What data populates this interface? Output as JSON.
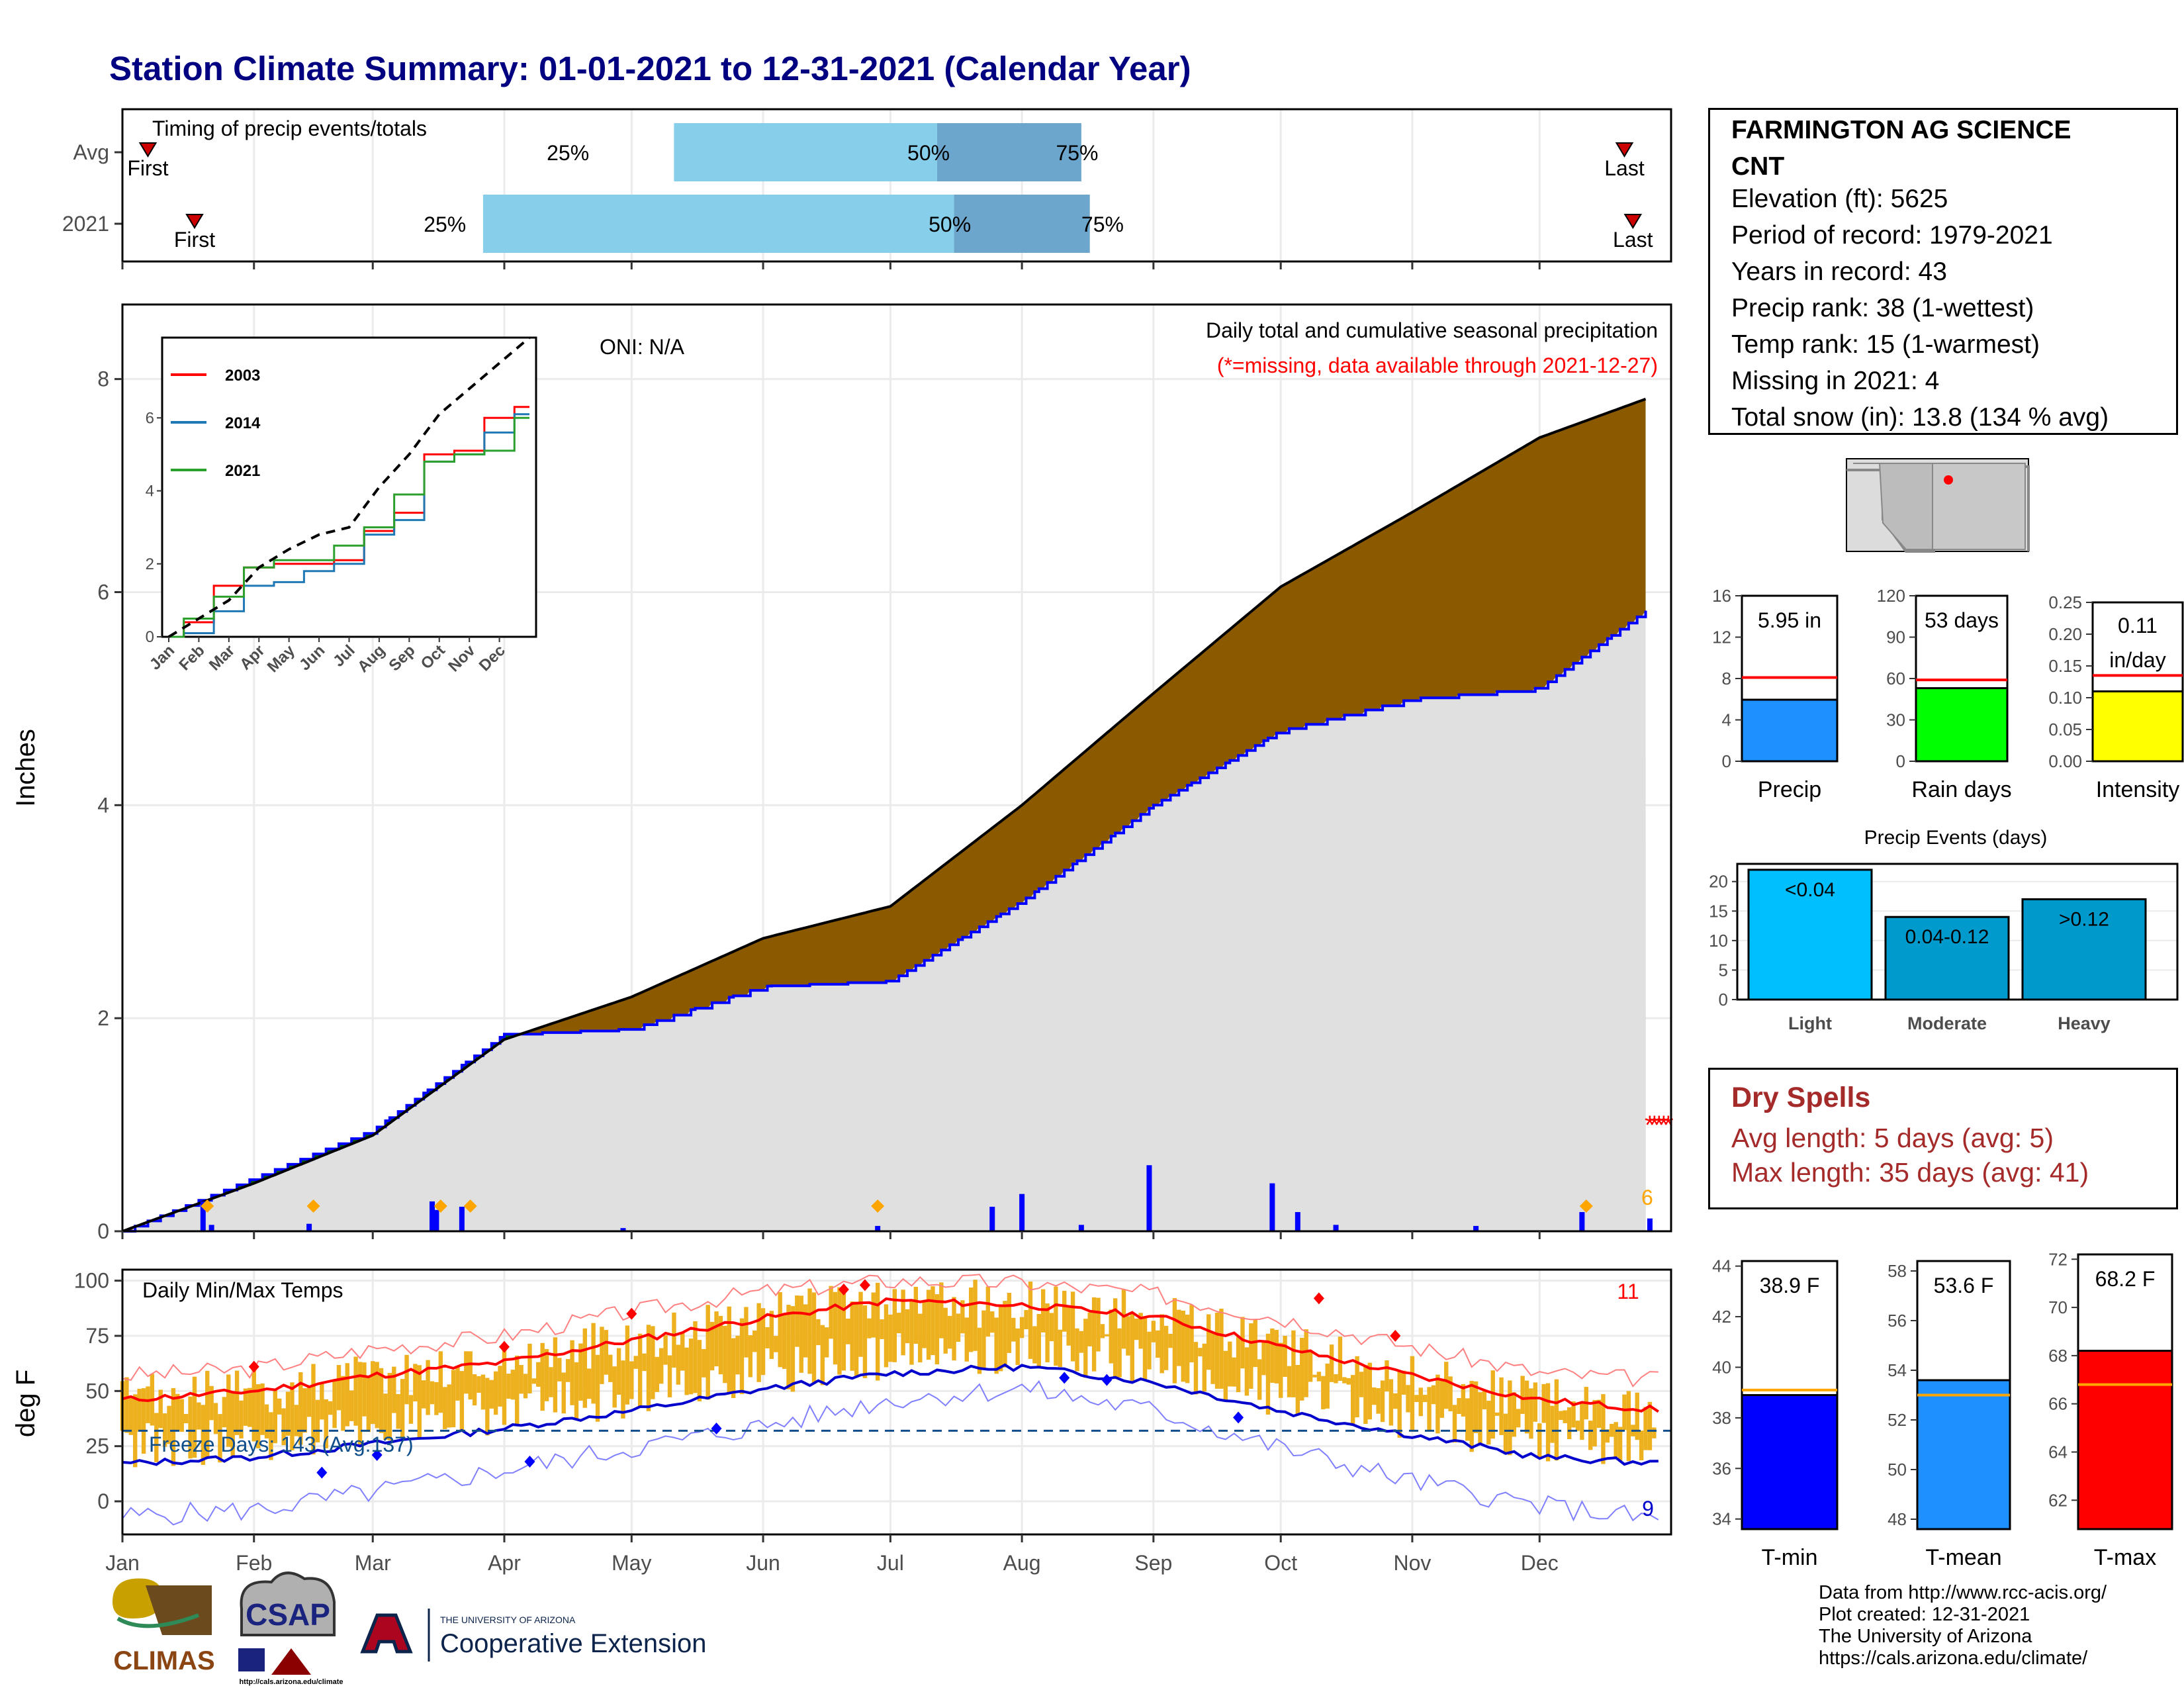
{
  "title": "Station Climate Summary: 01-01-2021 to 12-31-2021 (Calendar Year)",
  "colors": {
    "title": "#000080",
    "cumulative_avg": "#8B5A00",
    "below_avg": "#006400",
    "current": "#0000ff",
    "background_fill": "#e0e0e0",
    "timing_light": "#87ceeb",
    "timing_dark": "#6ca6cd",
    "temp_band": "#edb120",
    "tmax": "#ff0000",
    "tmin": "#0000cd",
    "freeze_line": "#104e8b"
  },
  "timing": {
    "label": "Timing of precip events/totals",
    "rows": [
      {
        "name": "Avg",
        "first": "First",
        "last": "Last",
        "p25": "25%",
        "p50": "50%",
        "p75": "75%"
      },
      {
        "name": "2021",
        "first": "First",
        "last": "Last",
        "p25": "25%",
        "p50": "50%",
        "p75": "75%"
      }
    ]
  },
  "precip_panel": {
    "ylabel": "Inches",
    "oni": "ONI: N/A",
    "subtitle": "Daily total and cumulative seasonal precipitation",
    "missing_note": "(*=missing, data available through 2021-12-27)",
    "count_label": "6",
    "yticks": [
      "0",
      "2",
      "4",
      "6",
      "8"
    ]
  },
  "inset": {
    "legend": [
      "2003",
      "2014",
      "2021"
    ],
    "yticks": [
      "0",
      "2",
      "4",
      "6"
    ],
    "months": [
      "Jan",
      "Feb",
      "Mar",
      "Apr",
      "May",
      "Jun",
      "Jul",
      "Aug",
      "Sep",
      "Oct",
      "Nov",
      "Dec"
    ]
  },
  "temp_panel": {
    "ylabel": "deg F",
    "title": "Daily Min/Max Temps",
    "freeze_label": "Freeze Days: 143 (Avg:137)",
    "count_max": "11",
    "count_min": "9",
    "yticks": [
      "0",
      "25",
      "50",
      "75",
      "100"
    ]
  },
  "months": [
    "Jan",
    "Feb",
    "Mar",
    "Apr",
    "May",
    "Jun",
    "Jul",
    "Aug",
    "Sep",
    "Oct",
    "Nov",
    "Dec"
  ],
  "station": {
    "name_line1": "FARMINGTON AG SCIENCE",
    "name_line2": "CNT",
    "elevation": "Elevation (ft): 5625",
    "period": "Period of record: 1979-2021",
    "years": "Years in record: 43",
    "precip_rank": "Precip rank: 38 (1-wettest)",
    "temp_rank": "Temp rank: 15 (1-warmest)",
    "missing": "Missing in 2021: 4",
    "snow": "Total snow (in): 13.8 (134 % avg)"
  },
  "dry_spells": {
    "title": "Dry Spells",
    "avg": "Avg length: 5 days (avg: 5)",
    "max": "Max length: 35 days (avg: 41)"
  },
  "footer": {
    "line1": "Data from http://www.rcc-acis.org/",
    "line2": "Plot created: 12-31-2021",
    "line3": "The University of Arizona",
    "line4": "https://cals.arizona.edu/climate/"
  },
  "logos": {
    "climas": "CLIMAS",
    "csap": "CSAP",
    "csap_url": "http://cals.arizona.edu/climate",
    "ua_small": "THE UNIVERSITY OF ARIZONA",
    "ua_big": "Cooperative Extension"
  },
  "chart_data": [
    {
      "type": "area",
      "title": "Daily total and cumulative seasonal precipitation",
      "ylabel": "Inches",
      "ylim": [
        0,
        8.7
      ],
      "x": [
        "2021-01-01",
        "2021-02-01",
        "2021-03-01",
        "2021-04-01",
        "2021-05-01",
        "2021-06-01",
        "2021-07-01",
        "2021-08-01",
        "2021-09-01",
        "2021-10-01",
        "2021-11-01",
        "2021-12-01",
        "2021-12-31"
      ],
      "series": [
        {
          "values": [
            0.0,
            0.45,
            0.9,
            1.8,
            2.2,
            2.75,
            3.05,
            4.0,
            5.05,
            6.05,
            6.75,
            7.45,
            7.9
          ]
        },
        {
          "values": [
            0.0,
            0.5,
            0.95,
            1.85,
            1.9,
            2.3,
            2.35,
            3.1,
            4.0,
            4.7,
            5.0,
            5.1,
            6.0
          ]
        }
      ],
      "daily_precip_bars": [
        {
          "date": "2021-01-20",
          "value": 0.28
        },
        {
          "date": "2021-01-22",
          "value": 0.06
        },
        {
          "date": "2021-02-14",
          "value": 0.07
        },
        {
          "date": "2021-03-15",
          "value": 0.28
        },
        {
          "date": "2021-03-16",
          "value": 0.2
        },
        {
          "date": "2021-03-22",
          "value": 0.23
        },
        {
          "date": "2021-04-29",
          "value": 0.03
        },
        {
          "date": "2021-06-28",
          "value": 0.05
        },
        {
          "date": "2021-07-25",
          "value": 0.23
        },
        {
          "date": "2021-08-01",
          "value": 0.35
        },
        {
          "date": "2021-08-15",
          "value": 0.06
        },
        {
          "date": "2021-08-31",
          "value": 0.62
        },
        {
          "date": "2021-09-29",
          "value": 0.45
        },
        {
          "date": "2021-10-05",
          "value": 0.18
        },
        {
          "date": "2021-10-14",
          "value": 0.06
        },
        {
          "date": "2021-11-16",
          "value": 0.05
        },
        {
          "date": "2021-12-11",
          "value": 0.18
        },
        {
          "date": "2021-12-27",
          "value": 0.12
        }
      ]
    },
    {
      "type": "line",
      "title": "",
      "legend": [
        "2003",
        "2014",
        "2021"
      ],
      "ylim": [
        0,
        8.2
      ],
      "x": [
        "Jan",
        "Feb",
        "Mar",
        "Apr",
        "May",
        "Jun",
        "Jul",
        "Aug",
        "Sep",
        "Oct",
        "Nov",
        "Dec",
        "Dec-end"
      ],
      "series": [
        {
          "name": "2003",
          "values": [
            0.0,
            0.4,
            1.4,
            1.9,
            2.0,
            2.0,
            2.1,
            2.9,
            3.4,
            5.0,
            5.1,
            6.0,
            6.3
          ]
        },
        {
          "name": "2014",
          "values": [
            0.0,
            0.1,
            0.7,
            1.4,
            1.5,
            1.8,
            2.0,
            2.8,
            3.2,
            4.8,
            5.0,
            5.6,
            6.1
          ]
        },
        {
          "name": "2021",
          "values": [
            0.0,
            0.5,
            1.1,
            1.9,
            2.1,
            2.1,
            2.5,
            3.0,
            3.9,
            4.8,
            5.0,
            5.1,
            6.0
          ]
        },
        {
          "values": [
            0.0,
            0.5,
            1.0,
            1.9,
            2.4,
            2.8,
            3.0,
            4.1,
            5.0,
            6.1,
            6.8,
            7.5,
            8.2
          ]
        }
      ]
    },
    {
      "type": "line",
      "title": "Daily Min/Max Temps",
      "ylabel": "deg F",
      "ylim": [
        -15,
        105
      ],
      "x": [
        "Jan",
        "Feb",
        "Mar",
        "Apr",
        "May",
        "Jun",
        "Jul",
        "Aug",
        "Sep",
        "Oct",
        "Nov",
        "Dec",
        "Dec-end"
      ],
      "series": [
        {
          "values": [
            46,
            50,
            57,
            63,
            73,
            83,
            91,
            89,
            84,
            70,
            57,
            46,
            41
          ]
        },
        {
          "values": [
            17,
            20,
            26,
            33,
            41,
            51,
            58,
            61,
            54,
            41,
            30,
            20,
            17
          ]
        },
        {
          "values": [
            57,
            60,
            69,
            75,
            86,
            95,
            100,
            99,
            94,
            83,
            70,
            58,
            55
          ]
        },
        {
          "values": [
            -7,
            -4,
            4,
            14,
            24,
            34,
            46,
            51,
            41,
            24,
            9,
            -2,
            -9
          ]
        }
      ],
      "freeze_threshold_F": 32
    },
    {
      "type": "bar",
      "categories": [
        "Precip"
      ],
      "values": [
        5.95
      ],
      "average": 8.1,
      "ylim": [
        0,
        16
      ],
      "yticks": [
        "0",
        "4",
        "8",
        "12",
        "16"
      ],
      "label": "5.95 in"
    },
    {
      "type": "bar",
      "categories": [
        "Rain days"
      ],
      "values": [
        53
      ],
      "average": 59,
      "ylim": [
        0,
        120
      ],
      "yticks": [
        "0",
        "30",
        "60",
        "90",
        "120"
      ],
      "label": "53 days"
    },
    {
      "type": "bar",
      "categories": [
        "Intensity"
      ],
      "values": [
        0.11
      ],
      "average": 0.135,
      "ylim": [
        0,
        0.25
      ],
      "yticks": [
        "0.00",
        "0.05",
        "0.10",
        "0.15",
        "0.20",
        "0.25"
      ],
      "label_line1": "0.11",
      "label_line2": "in/day"
    },
    {
      "type": "bar",
      "title": "Precip Events (days)",
      "categories": [
        "Light",
        "Moderate",
        "Heavy"
      ],
      "bar_labels": [
        "<0.04",
        "0.04-0.12",
        ">0.12"
      ],
      "values": [
        22,
        14,
        17
      ],
      "ylim": [
        0,
        23
      ],
      "yticks": [
        "0",
        "5",
        "10",
        "15",
        "20"
      ]
    },
    {
      "type": "bar",
      "categories": [
        "T-min"
      ],
      "values": [
        38.9
      ],
      "average": 39.1,
      "ylim": [
        33.6,
        44.2
      ],
      "yticks": [
        "34",
        "36",
        "38",
        "40",
        "42",
        "44"
      ],
      "label": "38.9 F"
    },
    {
      "type": "bar",
      "categories": [
        "T-mean"
      ],
      "values": [
        53.6
      ],
      "average": 53.0,
      "ylim": [
        47.6,
        58.4
      ],
      "yticks": [
        "48",
        "50",
        "52",
        "54",
        "56",
        "58"
      ],
      "label": "53.6 F"
    },
    {
      "type": "bar",
      "categories": [
        "T-max"
      ],
      "values": [
        68.2
      ],
      "average": 66.8,
      "ylim": [
        60.8,
        72.2
      ],
      "yticks": [
        "62",
        "64",
        "66",
        "68",
        "70",
        "72"
      ],
      "label": "68.2 F"
    }
  ]
}
